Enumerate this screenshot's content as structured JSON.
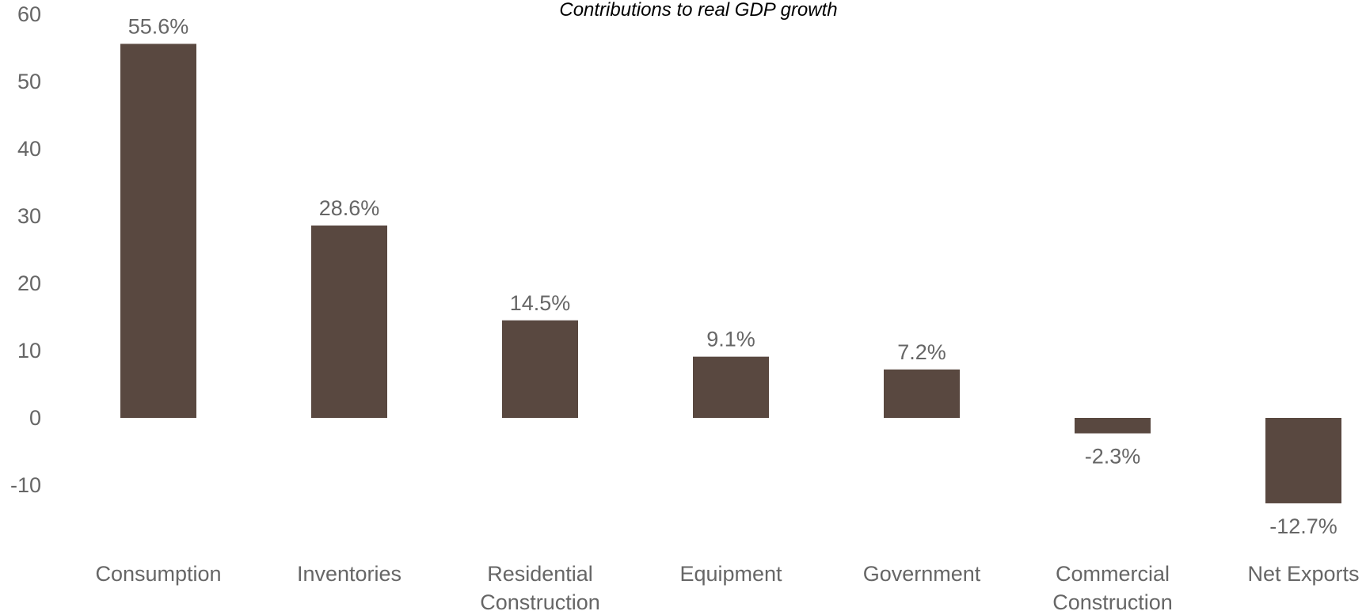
{
  "chart_data": {
    "type": "bar",
    "title": "Contributions to real GDP growth",
    "categories": [
      "Consumption",
      "Inventories",
      "Residential Construction",
      "Equipment",
      "Government",
      "Commercial Construction",
      "Net Exports"
    ],
    "category_lines": [
      [
        "Consumption"
      ],
      [
        "Inventories"
      ],
      [
        "Residential",
        "Construction"
      ],
      [
        "Equipment"
      ],
      [
        "Government"
      ],
      [
        "Commercial",
        "Construction"
      ],
      [
        "Net Exports"
      ]
    ],
    "values": [
      55.6,
      28.6,
      14.5,
      9.1,
      7.2,
      -2.3,
      -12.7
    ],
    "data_labels": [
      "55.6%",
      "28.6%",
      "14.5%",
      "9.1%",
      "7.2%",
      "-2.3%",
      "-12.7%"
    ],
    "yticks": [
      -10,
      0,
      10,
      20,
      30,
      40,
      50,
      60
    ],
    "ylim": [
      -15,
      60
    ],
    "xlabel": "",
    "ylabel": "",
    "grid": false,
    "bar_color": "#594840"
  }
}
